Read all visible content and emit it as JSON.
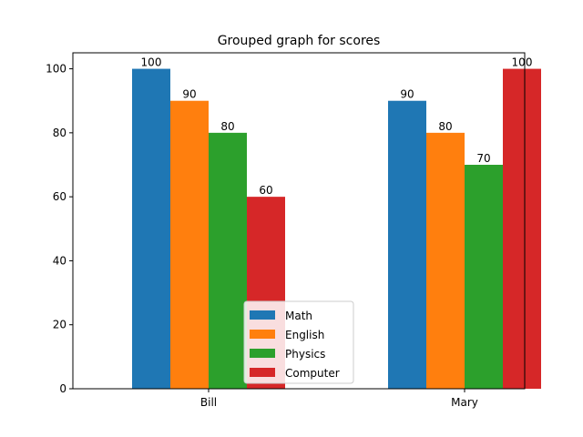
{
  "chart_data": {
    "type": "bar",
    "title": "Grouped graph for scores",
    "xlabel": "",
    "ylabel": "",
    "categories": [
      "Bill",
      "Mary"
    ],
    "ylim": [
      0,
      105
    ],
    "yticks": [
      0,
      20,
      40,
      60,
      80,
      100
    ],
    "series": [
      {
        "name": "Math",
        "color": "#1f77b4",
        "values": [
          100,
          90
        ]
      },
      {
        "name": "English",
        "color": "#ff7f0e",
        "values": [
          90,
          80
        ]
      },
      {
        "name": "Physics",
        "color": "#2ca02c",
        "values": [
          80,
          70
        ]
      },
      {
        "name": "Computer",
        "color": "#d62728",
        "values": [
          60,
          100
        ]
      }
    ],
    "legend_position": "bottom-center",
    "grid": false
  }
}
